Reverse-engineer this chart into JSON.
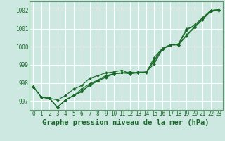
{
  "title": "Graphe pression niveau de la mer (hPa)",
  "bg_color": "#cce8e0",
  "grid_color": "#b0d8d0",
  "line_color": "#1a6b2a",
  "xlim": [
    -0.5,
    23.5
  ],
  "ylim": [
    996.5,
    1002.5
  ],
  "yticks": [
    997,
    998,
    999,
    1000,
    1001,
    1002
  ],
  "xticks": [
    0,
    1,
    2,
    3,
    4,
    5,
    6,
    7,
    8,
    9,
    10,
    11,
    12,
    13,
    14,
    15,
    16,
    17,
    18,
    19,
    20,
    21,
    22,
    23
  ],
  "series": [
    [
      997.8,
      997.2,
      997.15,
      996.65,
      997.05,
      997.3,
      997.5,
      997.9,
      998.1,
      998.3,
      998.5,
      998.55,
      998.55,
      998.55,
      998.6,
      999.05,
      999.85,
      1000.1,
      1000.1,
      1000.6,
      1001.05,
      1001.5,
      1001.95,
      1002.0
    ],
    [
      997.8,
      997.2,
      997.15,
      997.05,
      997.3,
      997.65,
      997.85,
      998.25,
      998.4,
      998.55,
      998.6,
      998.7,
      998.5,
      998.55,
      998.55,
      999.4,
      999.9,
      1000.1,
      1000.1,
      1000.9,
      1001.2,
      1001.6,
      1002.0,
      1002.05
    ],
    [
      997.8,
      997.2,
      997.15,
      996.65,
      997.05,
      997.3,
      997.65,
      997.95,
      998.15,
      998.4,
      998.5,
      998.55,
      998.6,
      998.55,
      998.6,
      999.2,
      999.85,
      1000.1,
      1000.15,
      1001.0,
      1001.1,
      1001.55,
      1001.95,
      1002.05
    ],
    [
      997.8,
      997.2,
      997.15,
      996.65,
      997.05,
      997.3,
      997.55,
      997.85,
      998.1,
      998.35,
      998.5,
      998.55,
      998.5,
      998.6,
      998.6,
      999.25,
      999.9,
      1000.1,
      1000.1,
      1000.65,
      1001.1,
      1001.55,
      1002.0,
      1002.05
    ]
  ],
  "marker": "D",
  "marker_size": 2.0,
  "line_width": 0.8,
  "title_fontsize": 7.5,
  "tick_fontsize": 5.5,
  "title_color": "#1a6b2a",
  "tick_color": "#1a6b2a",
  "spine_color": "#5a9a6a",
  "grid_white": "#ffffff"
}
